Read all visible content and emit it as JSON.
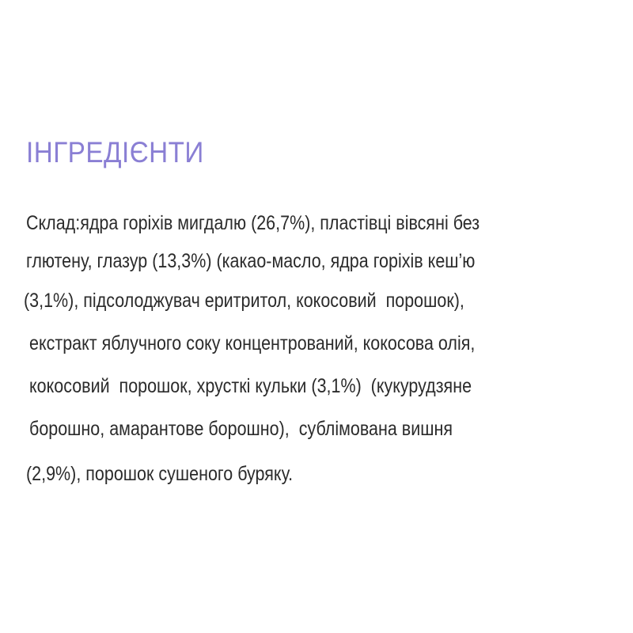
{
  "title": "ІНГРЕДІЄНТИ",
  "ingredients_lines": [
    "Склад:ядра горіхів мигдалю (26,7%), пластівці вівсяні без",
    "глютену, глазур (13,3%) (какао-масло, ядра горіхів кеш’ю",
    "(3,1%), підсолоджувач еритритол, кокосовий  порошок),",
    "екстракт яблучного соку концентрований, кокосова олія,",
    "кокосовий  порошок, хрусткі кульки (3,1%)  (кукурудзяне",
    "борошно, амарантове борошно),  сублімована вишня",
    "(2,9%), порошок сушеного буряку."
  ],
  "colors": {
    "title": "#8a7fd4",
    "text": "#2b2b2b",
    "background": "#ffffff"
  }
}
